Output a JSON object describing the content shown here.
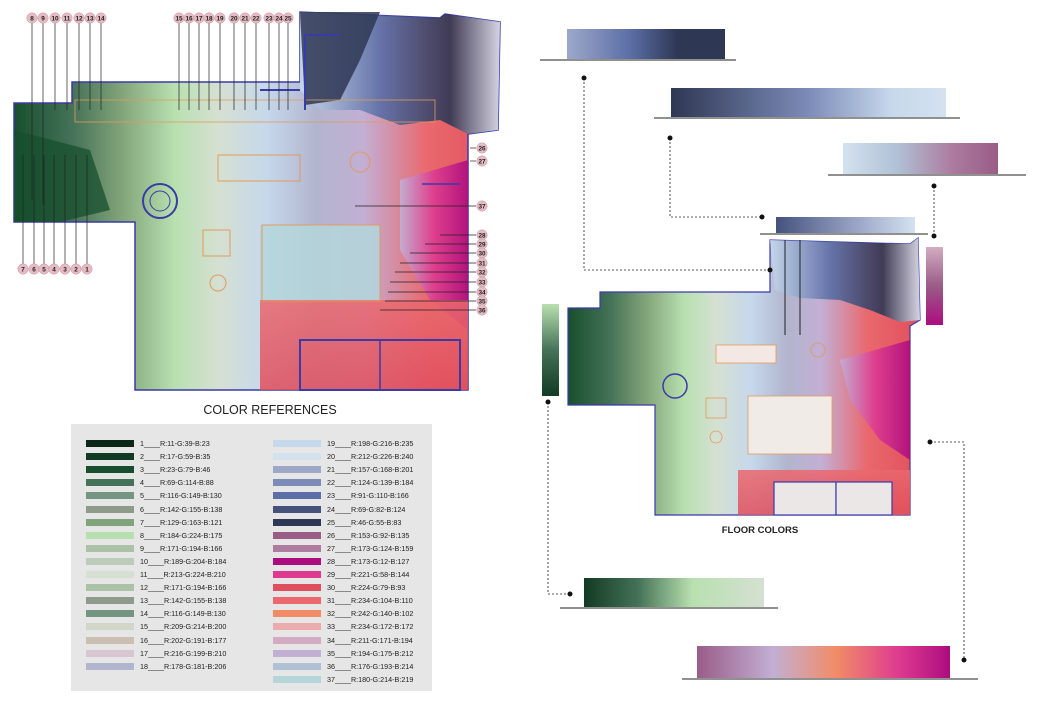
{
  "titles": {
    "color_references": "COLOR REFERENCES",
    "floor_colors": "FLOOR COLORS"
  },
  "markers_top": [
    "8",
    "9",
    "10",
    "11",
    "12",
    "13",
    "14",
    "15",
    "16",
    "17",
    "18",
    "19",
    "20",
    "21",
    "22",
    "23",
    "24",
    "25"
  ],
  "markers_bottom": [
    "7",
    "6",
    "5",
    "4",
    "3",
    "2",
    "1"
  ],
  "markers_right": [
    "26",
    "27",
    "37",
    "28",
    "29",
    "30",
    "31",
    "32",
    "33",
    "34",
    "35",
    "36"
  ],
  "legend": [
    {
      "num": "1",
      "text": "1____R:11-G:39-B:23",
      "color": "#0b2717"
    },
    {
      "num": "2",
      "text": "2____R:17-G:59-B:35",
      "color": "#113b23"
    },
    {
      "num": "3",
      "text": "3____R:23-G:79-B:46",
      "color": "#174f2e"
    },
    {
      "num": "4",
      "text": "4____R:69-G:114-B:88",
      "color": "#457258"
    },
    {
      "num": "5",
      "text": "5____R:116-G:149-B:130",
      "color": "#749582"
    },
    {
      "num": "6",
      "text": "6____R:142-G:155-B:138",
      "color": "#8e9b8a"
    },
    {
      "num": "7",
      "text": "7____R:129-G:163-B:121",
      "color": "#81a379"
    },
    {
      "num": "8",
      "text": "8____R:184-G:224-B:175",
      "color": "#b8e0af"
    },
    {
      "num": "9",
      "text": "9____R:171-G:194-B:166",
      "color": "#abc2a6"
    },
    {
      "num": "10",
      "text": "10____R:189-G:204-B:184",
      "color": "#bdccb8"
    },
    {
      "num": "11",
      "text": "11____R:213-G:224-B:210",
      "color": "#d5e0d2"
    },
    {
      "num": "12",
      "text": "12____R:171-G:194-B:166",
      "color": "#abc2a6"
    },
    {
      "num": "13",
      "text": "13____R:142-G:155-B:138",
      "color": "#8e9b8a"
    },
    {
      "num": "14",
      "text": "14____R:116-G:149-B:130",
      "color": "#749582"
    },
    {
      "num": "15",
      "text": "15____R:209-G:214-B:200",
      "color": "#d1d6c8"
    },
    {
      "num": "16",
      "text": "16____R:202-G:191-B:177",
      "color": "#cabfb1"
    },
    {
      "num": "17",
      "text": "17____R:216-G:199-B:210",
      "color": "#d8c7d2"
    },
    {
      "num": "18",
      "text": "18____R:178-G:181-B:206",
      "color": "#b2b5ce"
    },
    {
      "num": "19",
      "text": "19____R:198-G:216-B:235",
      "color": "#c6d8eb"
    },
    {
      "num": "20",
      "text": "20____R:212-G:226-B:240",
      "color": "#d4e2f0"
    },
    {
      "num": "21",
      "text": "21____R:157-G:168-B:201",
      "color": "#9da8c9"
    },
    {
      "num": "22",
      "text": "22____R:124-G:139-B:184",
      "color": "#7c8bb8"
    },
    {
      "num": "23",
      "text": "23____R:91-G:110-B:166",
      "color": "#5b6ea6"
    },
    {
      "num": "24",
      "text": "24____R:69-G:82-B:124",
      "color": "#45527c"
    },
    {
      "num": "25",
      "text": "25____R:46-G:55-B:83",
      "color": "#2e3753"
    },
    {
      "num": "26",
      "text": "26____R:153-G:92-B:135",
      "color": "#995c87"
    },
    {
      "num": "27",
      "text": "27____R:173-G:124-B:159",
      "color": "#ad7c9f"
    },
    {
      "num": "28",
      "text": "28____R:173-G:12-B:127",
      "color": "#ad0c7f"
    },
    {
      "num": "29",
      "text": "29____R:221-G:58-B:144",
      "color": "#dd3a90"
    },
    {
      "num": "30",
      "text": "30____R:224-G:79-B:93",
      "color": "#e04f5d"
    },
    {
      "num": "31",
      "text": "31____R:234-G:104-B:110",
      "color": "#ea686e"
    },
    {
      "num": "32",
      "text": "32____R:242-G:140-B:102",
      "color": "#f28c66"
    },
    {
      "num": "33",
      "text": "33____R:234-G:172-B:172",
      "color": "#eaacac"
    },
    {
      "num": "34",
      "text": "34____R:211-G:171-B:194",
      "color": "#d3abc2"
    },
    {
      "num": "35",
      "text": "35____R:194-G:175-B:212",
      "color": "#c2afd4"
    },
    {
      "num": "36",
      "text": "36____R:176-G:193-B:214",
      "color": "#b0c1d6"
    },
    {
      "num": "37",
      "text": "37____R:180-G:214-B:219",
      "color": "#b4d6db"
    }
  ]
}
